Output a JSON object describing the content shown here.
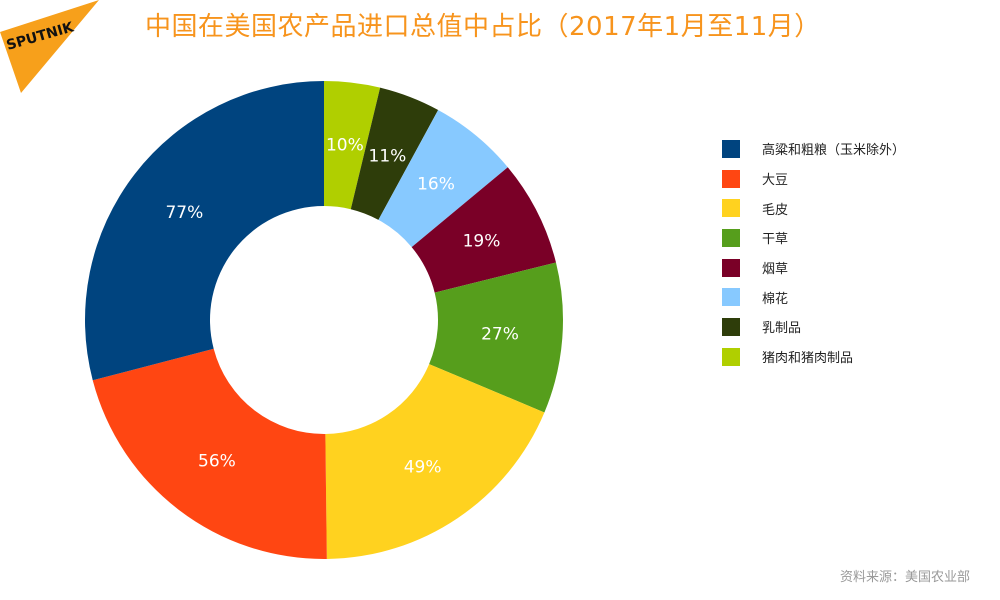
{
  "logo_text": "SPUTNIK",
  "source": "资料来源：美国农业部",
  "chart_data": {
    "type": "pie",
    "title": "中国在美国农产品进口总值中占比（2017年1月至11月）",
    "donut": true,
    "start": "top, clockwise",
    "legend_position": "right",
    "categories": [
      "猪肉和猪肉制品",
      "乳制品",
      "棉花",
      "烟草",
      "干草",
      "毛皮",
      "大豆",
      "高粱和粗粮（玉米除外）"
    ],
    "values": [
      10,
      11,
      16,
      19,
      27,
      49,
      56,
      77
    ],
    "labels": [
      "10%",
      "11%",
      "16%",
      "19%",
      "27%",
      "49%",
      "56%",
      "77%"
    ],
    "colors": [
      "#b0cf00",
      "#2e3d0a",
      "#87c9ff",
      "#7a0027",
      "#569e1c",
      "#ffd21f",
      "#ff4612",
      "#00447f"
    ],
    "legend": [
      {
        "label": "高粱和粗粮（玉米除外）",
        "color": "#00447f"
      },
      {
        "label": "大豆",
        "color": "#ff4612"
      },
      {
        "label": "毛皮",
        "color": "#ffd21f"
      },
      {
        "label": "干草",
        "color": "#569e1c"
      },
      {
        "label": "烟草",
        "color": "#7a0027"
      },
      {
        "label": "棉花",
        "color": "#87c9ff"
      },
      {
        "label": "乳制品",
        "color": "#2e3d0a"
      },
      {
        "label": "猪肉和猪肉制品",
        "color": "#b0cf00"
      }
    ]
  }
}
